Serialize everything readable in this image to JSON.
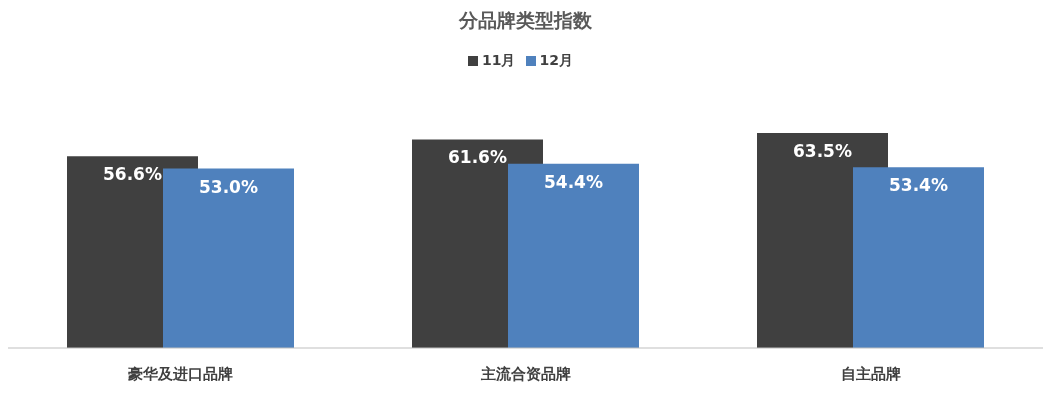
{
  "chart_data": {
    "type": "bar",
    "title": "分品牌类型指数",
    "categories": [
      "豪华及进口品牌",
      "主流合资品牌",
      "自主品牌"
    ],
    "series": [
      {
        "name": "11月",
        "color": "#404040",
        "values": [
          56.6,
          61.6,
          63.5
        ],
        "value_labels": [
          "56.6%",
          "61.6%",
          "63.5%"
        ]
      },
      {
        "name": "12月",
        "color": "#4f81bd",
        "values": [
          53.0,
          54.4,
          53.4
        ],
        "value_labels": [
          "53.0%",
          "54.4%",
          "53.4%"
        ]
      }
    ],
    "legend": "top"
  }
}
